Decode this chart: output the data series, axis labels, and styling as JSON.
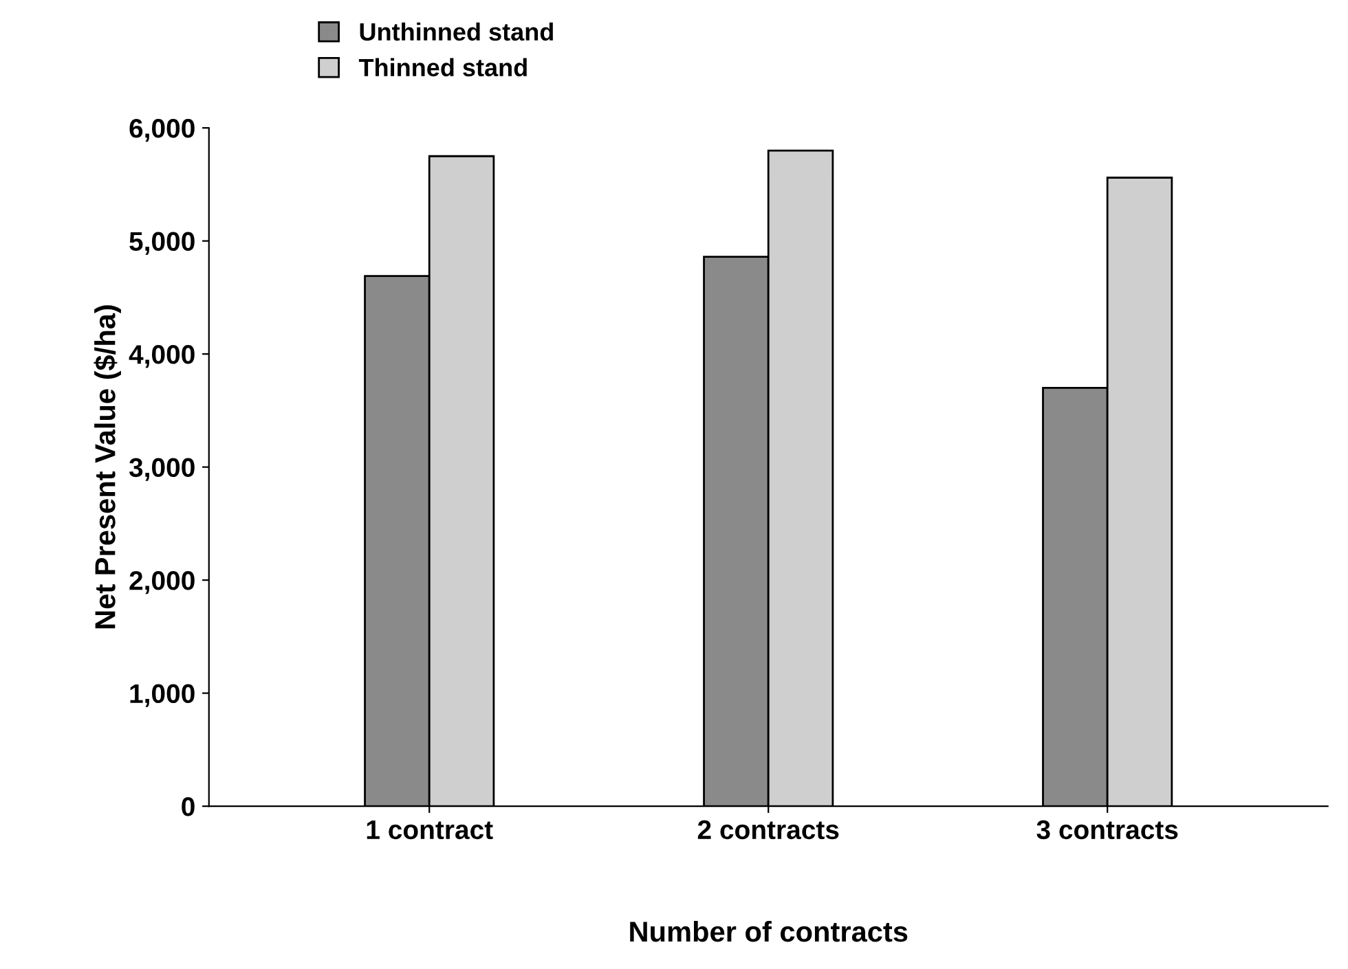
{
  "chart_data": {
    "type": "bar",
    "xlabel": "Number of contracts",
    "ylabel": "Net Present Value ($/ha)",
    "categories": [
      "1 contract",
      "2 contracts",
      "3 contracts"
    ],
    "series": [
      {
        "name": "Unthinned stand",
        "color": "#8a8a8a",
        "values": [
          4690,
          4860,
          3700
        ]
      },
      {
        "name": "Thinned stand",
        "color": "#cfcfcf",
        "values": [
          5750,
          5800,
          5560
        ]
      }
    ],
    "ylim": [
      0,
      6000
    ],
    "yticks": [
      {
        "value": 0,
        "label": "0"
      },
      {
        "value": 1000,
        "label": "1,000"
      },
      {
        "value": 2000,
        "label": "2,000"
      },
      {
        "value": 3000,
        "label": "3,000"
      },
      {
        "value": 4000,
        "label": "4,000"
      },
      {
        "value": 5000,
        "label": "5,000"
      },
      {
        "value": 6000,
        "label": "6,000"
      }
    ],
    "grid": false,
    "legend": "top left"
  }
}
